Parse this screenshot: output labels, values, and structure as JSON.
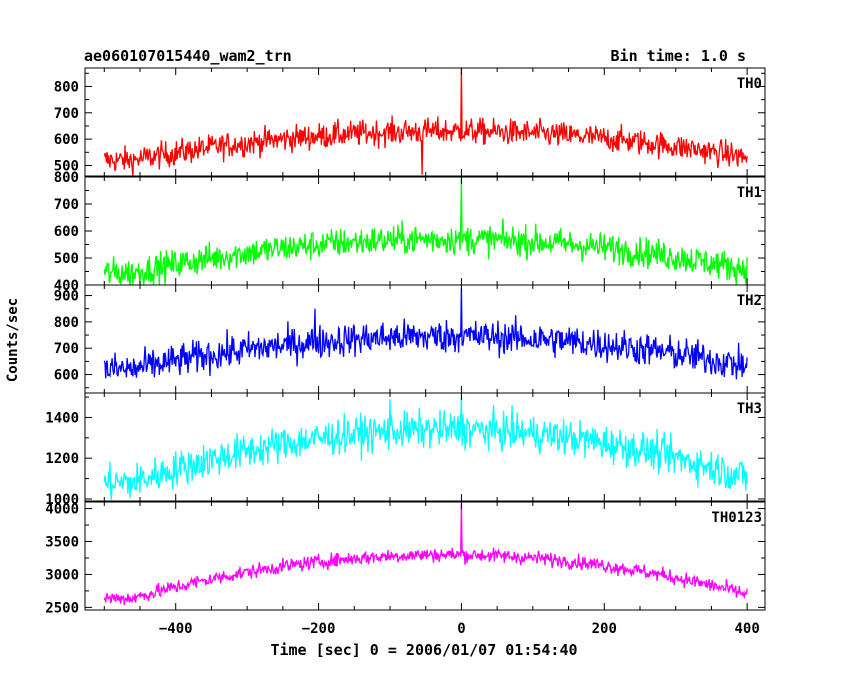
{
  "chart_data": {
    "type": "line",
    "title_left": "ae060107015440_wam2_trn",
    "title_right": "Bin time: 1.0 s",
    "ylabel": "Counts/sec",
    "xlabel": "Time [sec] 0 = 2006/01/07 01:54:40",
    "xlim": [
      -527,
      425
    ],
    "xticks": [
      -400,
      -200,
      0,
      200,
      400
    ],
    "x_range": [
      -500,
      400
    ],
    "bin_time": 1.0,
    "panels": [
      {
        "name": "TH0",
        "color": "#ff0000",
        "ylim": [
          460,
          870
        ],
        "yticks": [
          500,
          600,
          700,
          800
        ],
        "trend": {
          "edge": 520,
          "center": 630,
          "noise": 25
        },
        "features": [
          {
            "x": 0,
            "value": 870
          },
          {
            "x": -55,
            "value": 465
          }
        ]
      },
      {
        "name": "TH1",
        "color": "#00ff00",
        "ylim": [
          400,
          800
        ],
        "yticks": [
          400,
          500,
          600,
          700,
          800
        ],
        "trend": {
          "edge": 445,
          "center": 570,
          "noise": 28
        },
        "features": [
          {
            "x": 0,
            "value": 795
          }
        ]
      },
      {
        "name": "TH2",
        "color": "#0000ff",
        "ylim": [
          530,
          940
        ],
        "yticks": [
          600,
          700,
          800,
          900
        ],
        "trend": {
          "edge": 620,
          "center": 745,
          "noise": 32
        },
        "features": [
          {
            "x": 0,
            "value": 930
          },
          {
            "x": -205,
            "value": 850
          }
        ]
      },
      {
        "name": "TH3",
        "color": "#00ffff",
        "ylim": [
          990,
          1520
        ],
        "yticks": [
          1000,
          1200,
          1400
        ],
        "trend": {
          "edge": 1080,
          "center": 1340,
          "noise": 45
        },
        "features": [
          {
            "x": 0,
            "value": 1510
          },
          {
            "x": -100,
            "value": 1490
          }
        ]
      },
      {
        "name": "TH0123",
        "color": "#ff00ff",
        "ylim": [
          2460,
          4100
        ],
        "yticks": [
          2500,
          3000,
          3500,
          4000
        ],
        "trend": {
          "edge": 2640,
          "center": 3300,
          "noise": 55
        },
        "features": [
          {
            "x": 0,
            "value": 4090
          }
        ]
      }
    ]
  }
}
